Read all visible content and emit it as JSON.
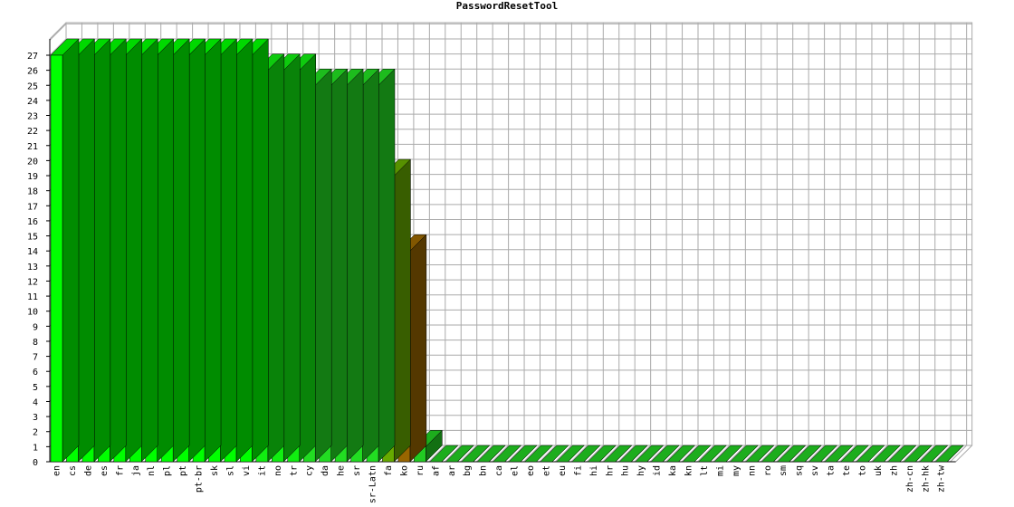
{
  "chart_data": {
    "type": "bar",
    "title": "PasswordResetTool",
    "xlabel": "",
    "ylabel": "",
    "ylim": [
      0,
      27
    ],
    "y_ticks": [
      "0",
      "1",
      "2",
      "3",
      "4",
      "5",
      "6",
      "7",
      "8",
      "9",
      "10",
      "11",
      "12",
      "13",
      "14",
      "15",
      "16",
      "17",
      "18",
      "19",
      "20",
      "21",
      "22",
      "23",
      "24",
      "25",
      "26",
      "27"
    ],
    "grid": true,
    "legend": "none",
    "three_d": true,
    "categories": [
      "en",
      "cs",
      "de",
      "es",
      "fr",
      "ja",
      "nl",
      "pl",
      "pt",
      "pt-br",
      "sk",
      "sl",
      "vi",
      "it",
      "no",
      "tr",
      "cy",
      "da",
      "he",
      "sr",
      "sr-Latn",
      "fa",
      "ko",
      "ru",
      "af",
      "ar",
      "bg",
      "bn",
      "ca",
      "el",
      "eo",
      "et",
      "eu",
      "fi",
      "hi",
      "hr",
      "hu",
      "hy",
      "id",
      "ka",
      "kn",
      "lt",
      "mi",
      "my",
      "nn",
      "ro",
      "sm",
      "sq",
      "sv",
      "ta",
      "te",
      "to",
      "uk",
      "zh",
      "zh-cn",
      "zh-hk",
      "zh-tw"
    ],
    "values": [
      27,
      27,
      27,
      27,
      27,
      27,
      27,
      27,
      27,
      27,
      27,
      27,
      27,
      26,
      26,
      26,
      25,
      25,
      25,
      25,
      25,
      19,
      14,
      1,
      0,
      0,
      0,
      0,
      0,
      0,
      0,
      0,
      0,
      0,
      0,
      0,
      0,
      0,
      0,
      0,
      0,
      0,
      0,
      0,
      0,
      0,
      0,
      0,
      0,
      0,
      0,
      0,
      0,
      0,
      0,
      0,
      0
    ],
    "colors": {
      "full": "#00ff00",
      "high": "#22dd22",
      "mid": "#11ee11",
      "partial": "#66aa00",
      "low": "#996600",
      "zero": "#22cc22",
      "grid": "#aaaaaa",
      "axis": "#000000"
    }
  }
}
